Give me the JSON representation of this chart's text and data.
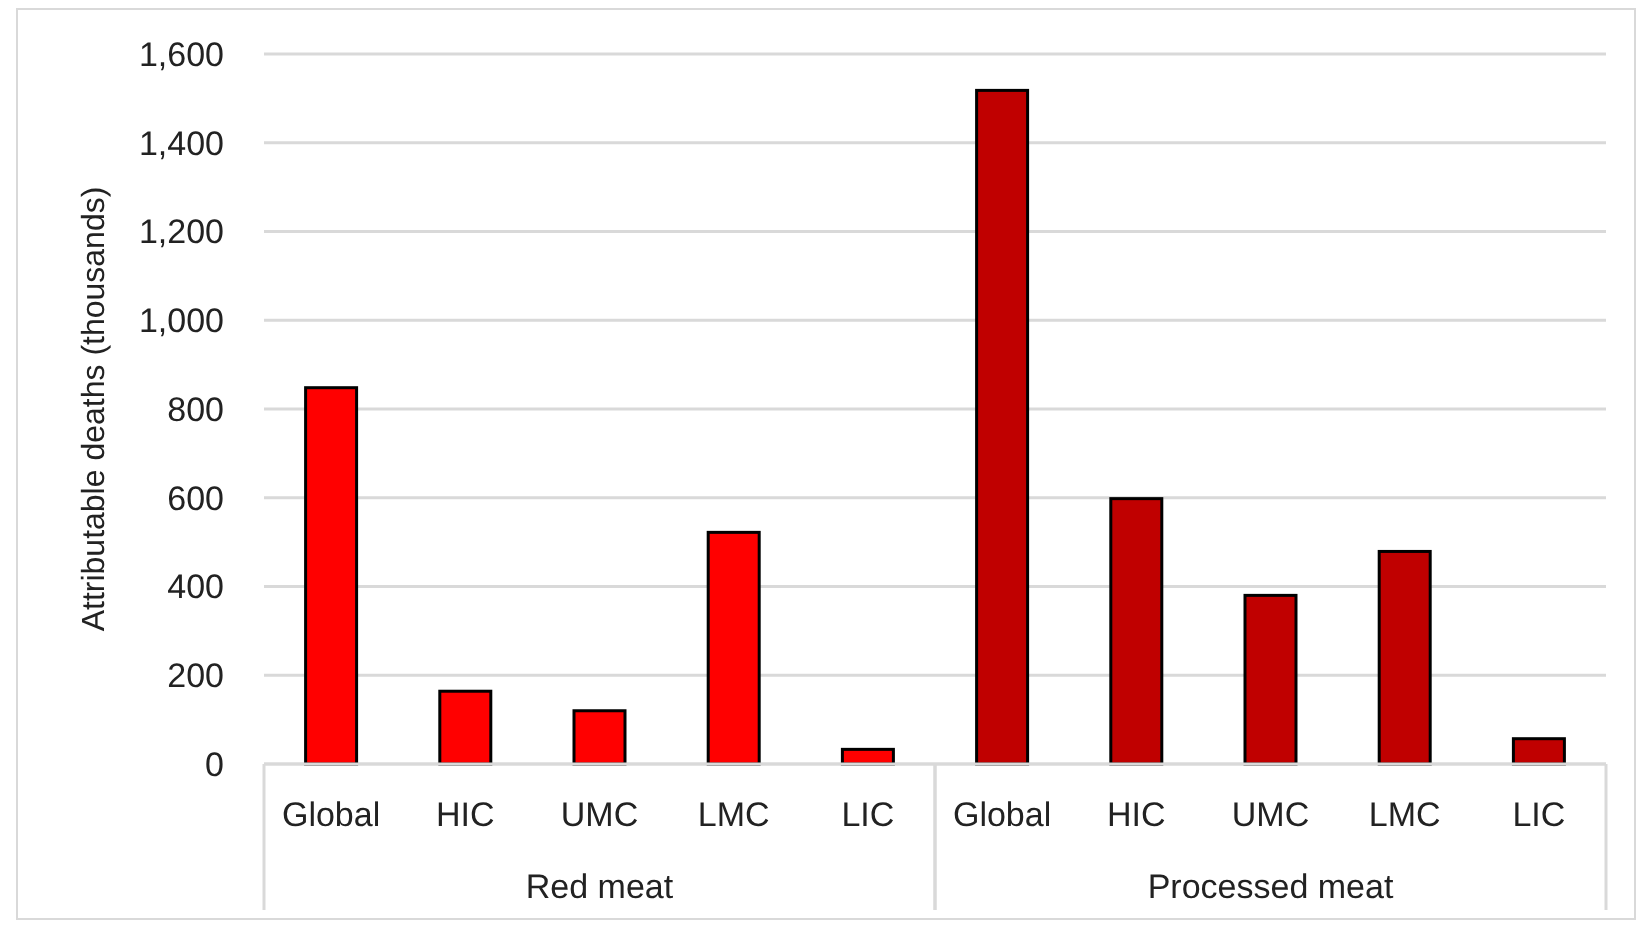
{
  "chart_data": {
    "type": "bar",
    "ylabel": "Attributable deaths (thousands)",
    "categories": [
      "Global",
      "HIC",
      "UMC",
      "LMC",
      "LIC",
      "Global",
      "HIC",
      "UMC",
      "LMC",
      "LIC"
    ],
    "values": [
      848,
      164,
      120,
      522,
      33,
      1518,
      598,
      380,
      479,
      57
    ],
    "colors": [
      "#ff0000",
      "#ff0000",
      "#ff0000",
      "#ff0000",
      "#ff0000",
      "#c00000",
      "#c00000",
      "#c00000",
      "#c00000",
      "#c00000"
    ],
    "annotations": [
      "Red meat",
      "Processed meat"
    ],
    "ylim": [
      0,
      1600
    ],
    "yticks": [
      {
        "value": 0,
        "label": "0"
      },
      {
        "value": 200,
        "label": "200"
      },
      {
        "value": 400,
        "label": "400"
      },
      {
        "value": 600,
        "label": "600"
      },
      {
        "value": 800,
        "label": "800"
      },
      {
        "value": 1000,
        "label": "1,000"
      },
      {
        "value": 1200,
        "label": "1,200"
      },
      {
        "value": 1400,
        "label": "1,400"
      },
      {
        "value": 1600,
        "label": "1,600"
      }
    ],
    "grid": "y"
  }
}
